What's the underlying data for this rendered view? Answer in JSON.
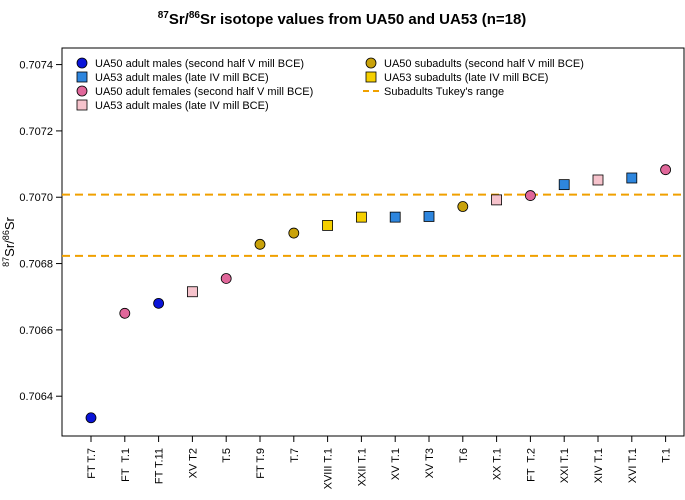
{
  "chart_data": {
    "type": "scatter",
    "title": {
      "iso_a": "87",
      "sr_a": "Sr/",
      "iso_b": "86",
      "sr_b": "Sr",
      "rest": " isotope values from UA50 and UA53 (n=18)"
    },
    "ylabel": {
      "iso_a": "87",
      "sr_a": "Sr/",
      "iso_b": "86",
      "sr_b": "Sr"
    },
    "ylim": [
      0.70628,
      0.70745
    ],
    "yticks": [
      "0.7064",
      "0.7066",
      "0.7068",
      "0.7070",
      "0.7072",
      "0.7074"
    ],
    "categories": [
      "FT T.7",
      "FT  T.1",
      "FT T.11",
      "XV T2",
      "T.5",
      "FT T.9",
      "T.7",
      "XVIII T.1",
      "XXII T.1",
      "XV T.1",
      "XV T3",
      "T.6",
      "XX T.1",
      "FT  T.2",
      "XXI T.1",
      "XIV T.1",
      "XVI T.1",
      "T.1"
    ],
    "points": [
      {
        "x": "FT T.7",
        "y": 0.706335,
        "group": 0
      },
      {
        "x": "FT  T.1",
        "y": 0.70665,
        "group": 2
      },
      {
        "x": "FT T.11",
        "y": 0.70668,
        "group": 0
      },
      {
        "x": "XV T2",
        "y": 0.706715,
        "group": 3
      },
      {
        "x": "T.5",
        "y": 0.706755,
        "group": 2
      },
      {
        "x": "FT T.9",
        "y": 0.706858,
        "group": 4
      },
      {
        "x": "T.7",
        "y": 0.706892,
        "group": 4
      },
      {
        "x": "XVIII T.1",
        "y": 0.706915,
        "group": 5
      },
      {
        "x": "XXII T.1",
        "y": 0.70694,
        "group": 5
      },
      {
        "x": "XV T.1",
        "y": 0.70694,
        "group": 1
      },
      {
        "x": "XV T3",
        "y": 0.706942,
        "group": 1
      },
      {
        "x": "T.6",
        "y": 0.706972,
        "group": 4
      },
      {
        "x": "XX T.1",
        "y": 0.706992,
        "group": 3
      },
      {
        "x": "FT  T.2",
        "y": 0.707005,
        "group": 2
      },
      {
        "x": "XXI T.1",
        "y": 0.707038,
        "group": 1
      },
      {
        "x": "XIV T.1",
        "y": 0.707052,
        "group": 3
      },
      {
        "x": "XVI T.1",
        "y": 0.707058,
        "group": 1
      },
      {
        "x": "T.1",
        "y": 0.707083,
        "group": 2
      }
    ],
    "groups": [
      {
        "name": "UA50 adult males (second half V mill BCE)",
        "shape": "circle",
        "color": "#0a14d8"
      },
      {
        "name": "UA53 adult males (late IV mill BCE)",
        "shape": "square",
        "color": "#2e86de"
      },
      {
        "name": "UA50 adult females (second half V mill BCE)",
        "shape": "circle",
        "color": "#e0679a"
      },
      {
        "name": "UA53 adult males (late IV mill BCE)",
        "shape": "square",
        "color": "#f6c3cc"
      },
      {
        "name": "UA50 subadults (second half V mill BCE)",
        "shape": "circle",
        "color": "#c9a20a"
      },
      {
        "name": "UA53 subadults (late IV mill BCE)",
        "shape": "square",
        "color": "#f5cf00"
      }
    ],
    "reference_lines": {
      "name": "Subadults Tukey's range",
      "values": [
        0.707008,
        0.706823
      ],
      "color": "#f0a000",
      "style": "dashed"
    },
    "legend_position": "top-left",
    "grid": false
  }
}
